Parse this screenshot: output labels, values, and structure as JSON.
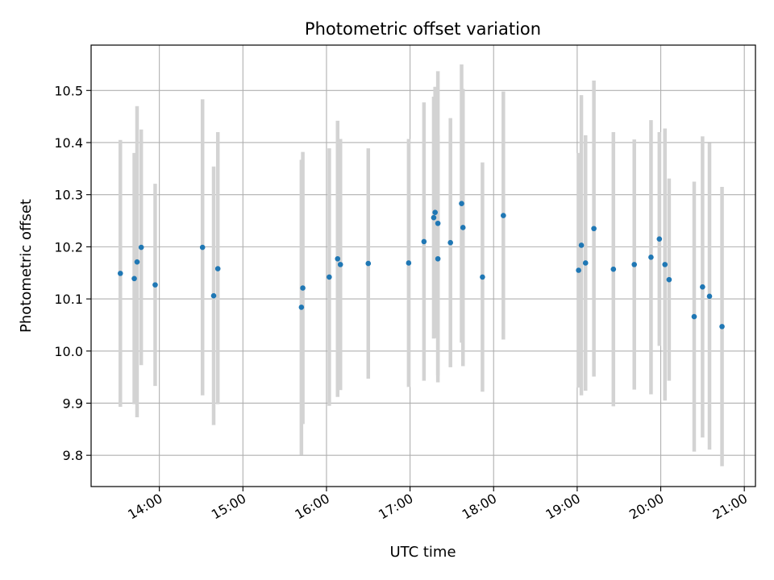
{
  "chart_data": {
    "type": "scatter",
    "title": "Photometric offset variation",
    "xlabel": "UTC time",
    "ylabel": "Photometric offset",
    "x_ticks": [
      "14:00",
      "15:00",
      "16:00",
      "17:00",
      "18:00",
      "19:00",
      "20:00",
      "21:00"
    ],
    "y_ticks": [
      "9.8",
      "9.9",
      "10.0",
      "10.1",
      "10.2",
      "10.3",
      "10.4",
      "10.5"
    ],
    "xlim": [
      "13:11",
      "21:08"
    ],
    "ylim": [
      9.74,
      10.587
    ],
    "grid": true,
    "colors": {
      "points": "#1f77b4",
      "errorbars": "#d3d3d3",
      "grid": "#b0b0b0"
    },
    "points": [
      {
        "x": "13:32",
        "y": 10.149,
        "low": 9.893,
        "high": 10.405
      },
      {
        "x": "13:42",
        "y": 10.139,
        "low": 9.898,
        "high": 10.38
      },
      {
        "x": "13:44",
        "y": 10.171,
        "low": 9.873,
        "high": 10.47
      },
      {
        "x": "13:47",
        "y": 10.199,
        "low": 9.973,
        "high": 10.425
      },
      {
        "x": "13:57",
        "y": 10.127,
        "low": 9.933,
        "high": 10.321
      },
      {
        "x": "14:31",
        "y": 10.199,
        "low": 9.915,
        "high": 10.483
      },
      {
        "x": "14:39",
        "y": 10.106,
        "low": 9.858,
        "high": 10.354
      },
      {
        "x": "14:42",
        "y": 10.158,
        "low": 9.898,
        "high": 10.42
      },
      {
        "x": "15:42",
        "y": 10.084,
        "low": 9.801,
        "high": 10.367
      },
      {
        "x": "15:43",
        "y": 10.121,
        "low": 9.86,
        "high": 10.382
      },
      {
        "x": "16:02",
        "y": 10.142,
        "low": 9.895,
        "high": 10.389
      },
      {
        "x": "16:08",
        "y": 10.177,
        "low": 9.912,
        "high": 10.442
      },
      {
        "x": "16:10",
        "y": 10.166,
        "low": 9.925,
        "high": 10.407
      },
      {
        "x": "16:30",
        "y": 10.168,
        "low": 9.947,
        "high": 10.389
      },
      {
        "x": "16:59",
        "y": 10.169,
        "low": 9.931,
        "high": 10.407
      },
      {
        "x": "17:10",
        "y": 10.21,
        "low": 9.943,
        "high": 10.477
      },
      {
        "x": "17:17",
        "y": 10.256,
        "low": 10.024,
        "high": 10.488
      },
      {
        "x": "17:18",
        "y": 10.266,
        "low": 10.025,
        "high": 10.507
      },
      {
        "x": "17:20",
        "y": 10.177,
        "low": 9.94,
        "high": 10.414
      },
      {
        "x": "17:20",
        "y": 10.245,
        "low": 9.953,
        "high": 10.537
      },
      {
        "x": "17:29",
        "y": 10.208,
        "low": 9.969,
        "high": 10.447
      },
      {
        "x": "17:37",
        "y": 10.283,
        "low": 10.016,
        "high": 10.55
      },
      {
        "x": "17:38",
        "y": 10.237,
        "low": 9.971,
        "high": 10.503
      },
      {
        "x": "17:52",
        "y": 10.142,
        "low": 9.922,
        "high": 10.362
      },
      {
        "x": "18:07",
        "y": 10.26,
        "low": 10.022,
        "high": 10.498
      },
      {
        "x": "19:01",
        "y": 10.155,
        "low": 9.93,
        "high": 10.38
      },
      {
        "x": "19:03",
        "y": 10.203,
        "low": 9.915,
        "high": 10.491
      },
      {
        "x": "19:06",
        "y": 10.169,
        "low": 9.924,
        "high": 10.414
      },
      {
        "x": "19:12",
        "y": 10.235,
        "low": 9.951,
        "high": 10.519
      },
      {
        "x": "19:26",
        "y": 10.157,
        "low": 9.894,
        "high": 10.42
      },
      {
        "x": "19:41",
        "y": 10.166,
        "low": 9.926,
        "high": 10.406
      },
      {
        "x": "19:53",
        "y": 10.18,
        "low": 9.917,
        "high": 10.443
      },
      {
        "x": "19:59",
        "y": 10.215,
        "low": 10.01,
        "high": 10.42
      },
      {
        "x": "20:03",
        "y": 10.166,
        "low": 9.905,
        "high": 10.427
      },
      {
        "x": "20:06",
        "y": 10.137,
        "low": 9.943,
        "high": 10.331
      },
      {
        "x": "20:24",
        "y": 10.066,
        "low": 9.807,
        "high": 10.325
      },
      {
        "x": "20:30",
        "y": 10.123,
        "low": 9.834,
        "high": 10.412
      },
      {
        "x": "20:35",
        "y": 10.105,
        "low": 9.811,
        "high": 10.399
      },
      {
        "x": "20:44",
        "y": 10.047,
        "low": 9.779,
        "high": 10.315
      }
    ]
  }
}
